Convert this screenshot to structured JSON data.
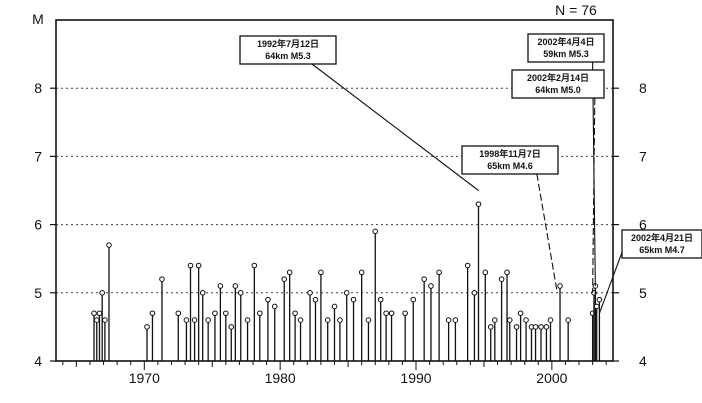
{
  "chart_data": {
    "type": "scatter",
    "style": "stem",
    "count_label": "N = 76",
    "ylabel": "M",
    "xlim": [
      1963.5,
      2004.5
    ],
    "ylim": [
      4,
      9
    ],
    "x_ticks": [
      1970,
      1980,
      1990,
      2000
    ],
    "y_ticks": [
      4,
      5,
      6,
      7,
      8
    ],
    "grid": "horizontal dotted",
    "colors": {
      "stem": "#111111",
      "marker_fill": "#ffffff",
      "grid": "#444444"
    },
    "points": [
      {
        "x": 1966.3,
        "y": 4.7
      },
      {
        "x": 1966.5,
        "y": 4.6
      },
      {
        "x": 1966.7,
        "y": 4.7
      },
      {
        "x": 1966.9,
        "y": 5.0
      },
      {
        "x": 1967.1,
        "y": 4.6
      },
      {
        "x": 1967.4,
        "y": 5.7
      },
      {
        "x": 1970.2,
        "y": 4.5
      },
      {
        "x": 1970.6,
        "y": 4.7
      },
      {
        "x": 1971.3,
        "y": 5.2
      },
      {
        "x": 1972.5,
        "y": 4.7
      },
      {
        "x": 1973.1,
        "y": 4.6
      },
      {
        "x": 1973.4,
        "y": 5.4
      },
      {
        "x": 1973.7,
        "y": 4.6
      },
      {
        "x": 1974.0,
        "y": 5.4
      },
      {
        "x": 1974.3,
        "y": 5.0
      },
      {
        "x": 1974.7,
        "y": 4.6
      },
      {
        "x": 1975.2,
        "y": 4.7
      },
      {
        "x": 1975.6,
        "y": 5.1
      },
      {
        "x": 1976.0,
        "y": 4.7
      },
      {
        "x": 1976.4,
        "y": 4.5
      },
      {
        "x": 1976.7,
        "y": 5.1
      },
      {
        "x": 1977.1,
        "y": 5.0
      },
      {
        "x": 1977.6,
        "y": 4.6
      },
      {
        "x": 1978.1,
        "y": 5.4
      },
      {
        "x": 1978.5,
        "y": 4.7
      },
      {
        "x": 1979.1,
        "y": 4.9
      },
      {
        "x": 1979.6,
        "y": 4.8
      },
      {
        "x": 1980.3,
        "y": 5.2
      },
      {
        "x": 1980.7,
        "y": 5.3
      },
      {
        "x": 1981.1,
        "y": 4.7
      },
      {
        "x": 1981.5,
        "y": 4.6
      },
      {
        "x": 1982.2,
        "y": 5.0
      },
      {
        "x": 1982.6,
        "y": 4.9
      },
      {
        "x": 1983.0,
        "y": 5.3
      },
      {
        "x": 1983.5,
        "y": 4.6
      },
      {
        "x": 1984.0,
        "y": 4.8
      },
      {
        "x": 1984.4,
        "y": 4.6
      },
      {
        "x": 1984.9,
        "y": 5.0
      },
      {
        "x": 1985.4,
        "y": 4.9
      },
      {
        "x": 1986.0,
        "y": 5.3
      },
      {
        "x": 1986.5,
        "y": 4.6
      },
      {
        "x": 1987.0,
        "y": 5.9
      },
      {
        "x": 1987.4,
        "y": 4.9
      },
      {
        "x": 1987.8,
        "y": 4.7
      },
      {
        "x": 1988.2,
        "y": 4.7
      },
      {
        "x": 1989.2,
        "y": 4.7
      },
      {
        "x": 1989.8,
        "y": 4.9
      },
      {
        "x": 1990.6,
        "y": 5.2
      },
      {
        "x": 1991.1,
        "y": 5.1
      },
      {
        "x": 1991.7,
        "y": 5.3
      },
      {
        "x": 1992.4,
        "y": 4.6
      },
      {
        "x": 1992.9,
        "y": 4.6
      },
      {
        "x": 1993.8,
        "y": 5.4
      },
      {
        "x": 1994.3,
        "y": 5.0
      },
      {
        "x": 1994.6,
        "y": 6.3
      },
      {
        "x": 1995.1,
        "y": 5.3
      },
      {
        "x": 1995.5,
        "y": 4.5
      },
      {
        "x": 1995.8,
        "y": 4.6
      },
      {
        "x": 1996.3,
        "y": 5.2
      },
      {
        "x": 1996.7,
        "y": 5.3
      },
      {
        "x": 1996.9,
        "y": 4.6
      },
      {
        "x": 1997.4,
        "y": 4.5
      },
      {
        "x": 1997.7,
        "y": 4.7
      },
      {
        "x": 1998.1,
        "y": 4.6
      },
      {
        "x": 1998.5,
        "y": 4.5
      },
      {
        "x": 1998.8,
        "y": 4.5
      },
      {
        "x": 1999.2,
        "y": 4.5
      },
      {
        "x": 1999.6,
        "y": 4.5
      },
      {
        "x": 1999.9,
        "y": 4.6
      },
      {
        "x": 2000.6,
        "y": 5.1
      },
      {
        "x": 2001.2,
        "y": 4.6
      },
      {
        "x": 2003.0,
        "y": 4.7
      },
      {
        "x": 2003.1,
        "y": 5.0
      },
      {
        "x": 2003.2,
        "y": 5.1
      },
      {
        "x": 2003.3,
        "y": 4.8
      },
      {
        "x": 2003.5,
        "y": 4.9
      }
    ],
    "annotations": [
      {
        "line1": "1992年7月12日",
        "line2": "64km  M5.3",
        "target": {
          "x": 1994.6,
          "y": 6.5
        },
        "style": "solid"
      },
      {
        "line1": "1998年11月7日",
        "line2": "65km  M4.6",
        "target": {
          "x": 2000.4,
          "y": 5.0
        },
        "style": "dashed"
      },
      {
        "line1": "2002年4月4日",
        "line2": "59km  M5.3",
        "target": {
          "x": 2003.2,
          "y": 5.1
        },
        "style": "solid"
      },
      {
        "line1": "2002年2月14日",
        "line2": "64km  M5.0",
        "target": {
          "x": 2003.0,
          "y": 5.0
        },
        "style": "dashed"
      },
      {
        "line1": "2002年4月21日",
        "line2": "65km  M4.7",
        "target": {
          "x": 2003.5,
          "y": 4.7
        },
        "style": "solid"
      }
    ]
  }
}
